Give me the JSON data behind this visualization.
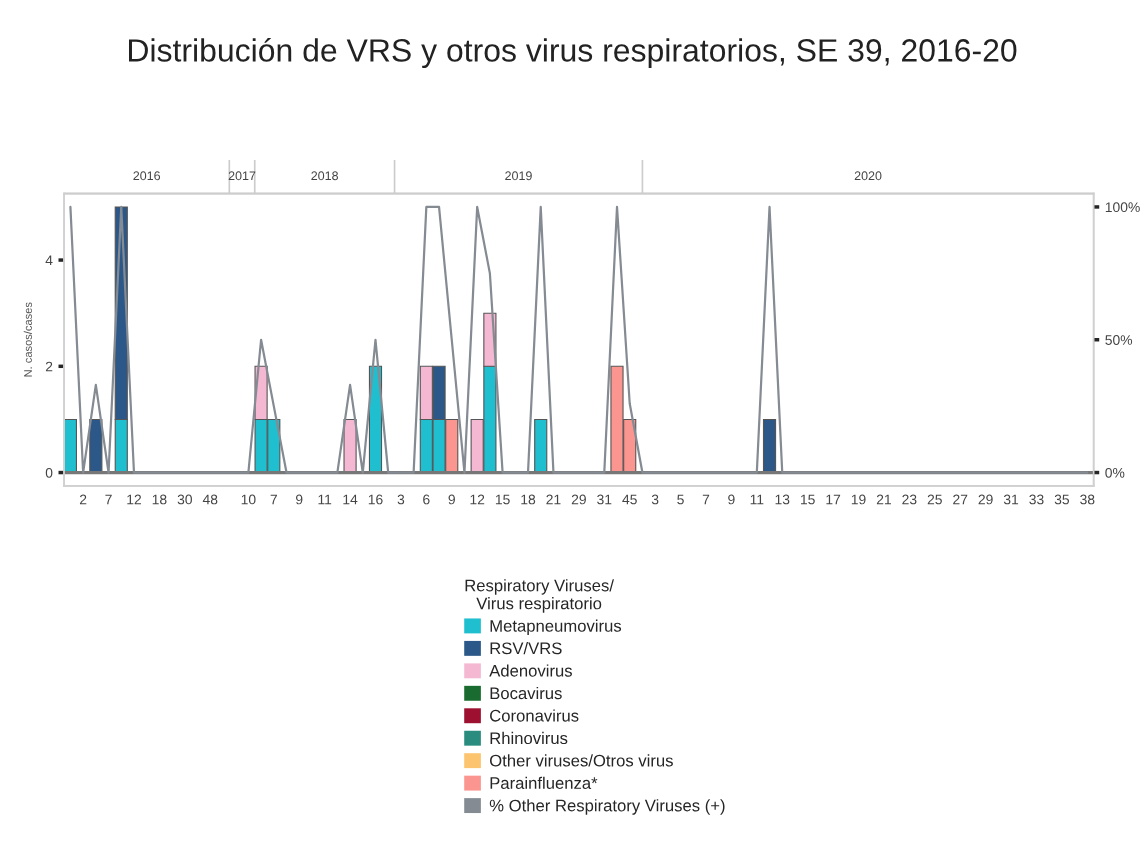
{
  "chart_data": {
    "type": "bar",
    "stacked": true,
    "title": "Distribución de VRS y otros virus respiratorios, SE 39, 2016-20",
    "ylabel": "N. casos/cases",
    "legend_title": "Respiratory Viruses/\nVirus respiratorio",
    "legend": "bottom",
    "annotations": [
      "2016",
      "2017",
      "2018",
      "2019",
      "2020"
    ],
    "categories": [
      null,
      "2",
      null,
      "7",
      null,
      "12",
      null,
      "18",
      null,
      "30",
      null,
      "48",
      null,
      null,
      "10",
      null,
      "7",
      null,
      "9",
      null,
      "11",
      null,
      "14",
      null,
      "16",
      null,
      "3",
      null,
      "6",
      null,
      "9",
      null,
      "12",
      null,
      "15",
      null,
      "18",
      null,
      "21",
      null,
      "29",
      null,
      "31",
      null,
      "45",
      null,
      "3",
      null,
      "5",
      null,
      "7",
      null,
      "9",
      null,
      "11",
      null,
      "13",
      null,
      "15",
      null,
      "17",
      null,
      "19",
      null,
      "21",
      null,
      "23",
      null,
      "25",
      null,
      "27",
      null,
      "29",
      null,
      "31",
      null,
      "33",
      null,
      "35",
      null,
      "38"
    ],
    "ylim": [
      -0.25,
      5.25
    ],
    "yticks": [
      0,
      2,
      4
    ],
    "y2lim": [
      -5,
      105
    ],
    "y2ticks": [
      {
        "value": 0,
        "label": "0%"
      },
      {
        "value": 50,
        "label": "50%"
      },
      {
        "value": 100,
        "label": "100%"
      }
    ],
    "series": [
      {
        "name": "Metapneumovirus",
        "color": "#1fbfcf",
        "values": [
          1,
          null,
          null,
          null,
          1,
          null,
          null,
          null,
          null,
          null,
          null,
          null,
          null,
          null,
          null,
          1,
          1,
          null,
          null,
          null,
          null,
          null,
          null,
          null,
          2,
          null,
          null,
          null,
          1,
          1,
          null,
          null,
          null,
          2,
          null,
          null,
          null,
          1,
          null,
          null,
          null,
          null,
          null,
          null,
          null,
          null,
          null,
          null,
          null,
          null,
          null,
          null,
          null,
          null,
          null,
          null,
          null,
          null,
          null,
          null,
          null,
          null,
          null,
          null,
          null,
          null,
          null,
          null,
          null,
          null,
          null,
          null,
          null,
          null,
          null,
          null,
          null,
          null,
          null,
          null,
          null
        ]
      },
      {
        "name": "RSV/VRS",
        "color": "#2b5888",
        "values": [
          null,
          null,
          1,
          null,
          4,
          null,
          null,
          null,
          null,
          null,
          null,
          null,
          null,
          null,
          null,
          null,
          null,
          null,
          null,
          null,
          null,
          null,
          null,
          null,
          null,
          null,
          null,
          null,
          null,
          1,
          null,
          null,
          null,
          null,
          null,
          null,
          null,
          null,
          null,
          null,
          null,
          null,
          null,
          null,
          null,
          null,
          null,
          null,
          null,
          null,
          null,
          null,
          null,
          null,
          null,
          1,
          null,
          null,
          null,
          null,
          null,
          null,
          null,
          null,
          null,
          null,
          null,
          null,
          null,
          null,
          null,
          null,
          null,
          null,
          null,
          null,
          null,
          null,
          null,
          null,
          null
        ]
      },
      {
        "name": "Adenovirus",
        "color": "#f5b8d3",
        "values": [
          null,
          null,
          null,
          null,
          null,
          null,
          null,
          null,
          null,
          null,
          null,
          null,
          null,
          null,
          null,
          1,
          null,
          null,
          null,
          null,
          null,
          null,
          1,
          null,
          null,
          null,
          null,
          null,
          1,
          null,
          null,
          null,
          1,
          1,
          null,
          null,
          null,
          null,
          null,
          null,
          null,
          null,
          null,
          null,
          null,
          null,
          null,
          null,
          null,
          null,
          null,
          null,
          null,
          null,
          null,
          null,
          null,
          null,
          null,
          null,
          null,
          null,
          null,
          null,
          null,
          null,
          null,
          null,
          null,
          null,
          null,
          null,
          null,
          null,
          null,
          null,
          null,
          null,
          null,
          null,
          null
        ]
      },
      {
        "name": "Bocavirus",
        "color": "#1a6b30",
        "values": [
          null,
          null,
          null,
          null,
          null,
          null,
          null,
          null,
          null,
          null,
          null,
          null,
          null,
          null,
          null,
          null,
          null,
          null,
          null,
          null,
          null,
          null,
          null,
          null,
          null,
          null,
          null,
          null,
          null,
          null,
          null,
          null,
          null,
          null,
          null,
          null,
          null,
          null,
          null,
          null,
          null,
          null,
          null,
          null,
          null,
          null,
          null,
          null,
          null,
          null,
          null,
          null,
          null,
          null,
          null,
          null,
          null,
          null,
          null,
          null,
          null,
          null,
          null,
          null,
          null,
          null,
          null,
          null,
          null,
          null,
          null,
          null,
          null,
          null,
          null,
          null,
          null,
          null,
          null,
          null,
          null
        ]
      },
      {
        "name": "Coronavirus",
        "color": "#9e1030",
        "values": [
          null,
          null,
          null,
          null,
          null,
          null,
          null,
          null,
          null,
          null,
          null,
          null,
          null,
          null,
          null,
          null,
          null,
          null,
          null,
          null,
          null,
          null,
          null,
          null,
          null,
          null,
          null,
          null,
          null,
          null,
          null,
          null,
          null,
          null,
          null,
          null,
          null,
          null,
          null,
          null,
          null,
          null,
          null,
          null,
          null,
          null,
          null,
          null,
          null,
          null,
          null,
          null,
          null,
          null,
          null,
          null,
          null,
          null,
          null,
          null,
          null,
          null,
          null,
          null,
          null,
          null,
          null,
          null,
          null,
          null,
          null,
          null,
          null,
          null,
          null,
          null,
          null,
          null,
          null,
          null,
          null
        ]
      },
      {
        "name": "Rhinovirus",
        "color": "#2a8c7e",
        "values": [
          null,
          null,
          null,
          null,
          null,
          null,
          null,
          null,
          null,
          null,
          null,
          null,
          null,
          null,
          null,
          null,
          null,
          null,
          null,
          null,
          null,
          null,
          null,
          null,
          null,
          null,
          null,
          null,
          null,
          null,
          null,
          null,
          null,
          null,
          null,
          null,
          null,
          null,
          null,
          null,
          null,
          null,
          null,
          null,
          null,
          null,
          null,
          null,
          null,
          null,
          null,
          null,
          null,
          null,
          null,
          null,
          null,
          null,
          null,
          null,
          null,
          null,
          null,
          null,
          null,
          null,
          null,
          null,
          null,
          null,
          null,
          null,
          null,
          null,
          null,
          null,
          null,
          null,
          null,
          null,
          null
        ]
      },
      {
        "name": "Other viruses/Otros virus",
        "color": "#fcc46e",
        "values": [
          null,
          null,
          null,
          null,
          null,
          null,
          null,
          null,
          null,
          null,
          null,
          null,
          null,
          null,
          null,
          null,
          null,
          null,
          null,
          null,
          null,
          null,
          null,
          null,
          null,
          null,
          null,
          null,
          null,
          null,
          null,
          null,
          null,
          null,
          null,
          null,
          null,
          null,
          null,
          null,
          null,
          null,
          null,
          null,
          null,
          null,
          null,
          null,
          null,
          null,
          null,
          null,
          null,
          null,
          null,
          null,
          null,
          null,
          null,
          null,
          null,
          null,
          null,
          null,
          null,
          null,
          null,
          null,
          null,
          null,
          null,
          null,
          null,
          null,
          null,
          null,
          null,
          null,
          null,
          null,
          null
        ]
      },
      {
        "name": "Parainfluenza*",
        "color": "#fb958f",
        "values": [
          null,
          null,
          null,
          null,
          null,
          null,
          null,
          null,
          null,
          null,
          null,
          null,
          null,
          null,
          null,
          null,
          null,
          null,
          null,
          null,
          null,
          null,
          null,
          null,
          null,
          null,
          null,
          null,
          null,
          null,
          1,
          null,
          null,
          null,
          null,
          null,
          null,
          null,
          null,
          null,
          null,
          null,
          null,
          2,
          1,
          null,
          null,
          null,
          null,
          null,
          null,
          null,
          null,
          null,
          null,
          null,
          null,
          null,
          null,
          null,
          null,
          null,
          null,
          null,
          null,
          null,
          null,
          null,
          null,
          null,
          null,
          null,
          null,
          null,
          null,
          null,
          null,
          null,
          null,
          null,
          null
        ]
      },
      {
        "name": "% Other Respiratory Viruses (+)",
        "type": "line",
        "axis": "y2",
        "color": "#858b93",
        "values": [
          100,
          0,
          33,
          0,
          100,
          0,
          0,
          0,
          0,
          0,
          0,
          0,
          0,
          0,
          0,
          50,
          25,
          0,
          0,
          0,
          0,
          0,
          33,
          0,
          50,
          0,
          0,
          0,
          100,
          100,
          50,
          0,
          100,
          75,
          0,
          0,
          0,
          100,
          0,
          0,
          0,
          0,
          0,
          100,
          26,
          0,
          0,
          0,
          0,
          0,
          0,
          0,
          0,
          0,
          0,
          100,
          0,
          0,
          0,
          0,
          0,
          0,
          0,
          0,
          0,
          0,
          0,
          0,
          0,
          0,
          0,
          0,
          0,
          0,
          0,
          0,
          0,
          0,
          0,
          0,
          0
        ]
      }
    ]
  }
}
